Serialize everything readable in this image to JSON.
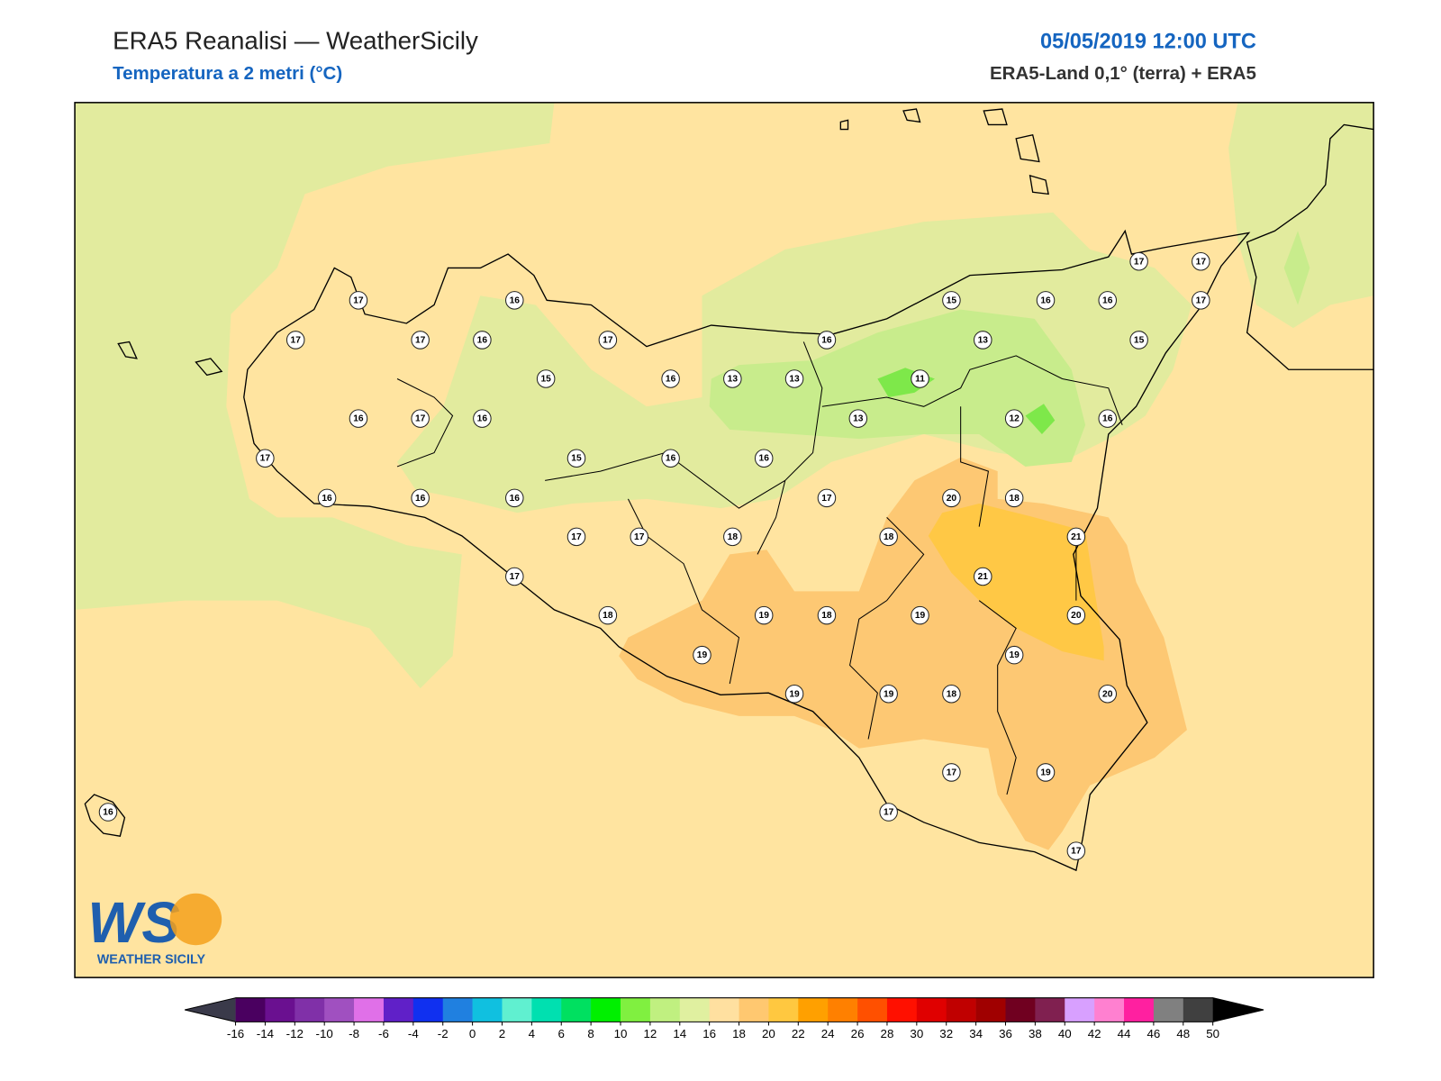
{
  "header": {
    "title": "ERA5 Reanalisi — WeatherSicily",
    "subtitle": "Temperatura a 2 metri (°C)",
    "datetime": "05/05/2019 12:00 UTC",
    "source": "ERA5-Land 0,1° (terra) + ERA5"
  },
  "stations": [
    17,
    16,
    17,
    17,
    16,
    17,
    15,
    16,
    13,
    13,
    16,
    17,
    16,
    17,
    15,
    16,
    16,
    16,
    16,
    16,
    17,
    17,
    18,
    17,
    18,
    19,
    19,
    18,
    19,
    16,
    17,
    13,
    11,
    18,
    19,
    19,
    20,
    18,
    15,
    13,
    21,
    12,
    18,
    19,
    16,
    19,
    17,
    17,
    21,
    20,
    20,
    17,
    16,
    15,
    16,
    17,
    17,
    17,
    16
  ],
  "colorbar": {
    "ticks": [
      -16,
      -14,
      -12,
      -10,
      -8,
      -6,
      -4,
      -2,
      0,
      2,
      4,
      6,
      8,
      10,
      12,
      14,
      16,
      18,
      20,
      22,
      24,
      26,
      28,
      30,
      32,
      34,
      36,
      38,
      40,
      42,
      44,
      46,
      48,
      50
    ],
    "colors": [
      "#4a0060",
      "#6a1090",
      "#8030a8",
      "#a050c0",
      "#e070e8",
      "#6020c8",
      "#1030f0",
      "#2080e0",
      "#10c0e0",
      "#60f0d0",
      "#00e0b0",
      "#00e060",
      "#00f000",
      "#80f040",
      "#c0f080",
      "#e0f0a0",
      "#ffe0a0",
      "#ffc870",
      "#ffc840",
      "#ffa000",
      "#ff8000",
      "#ff5000",
      "#ff1000",
      "#e00000",
      "#c00000",
      "#a00000",
      "#700020",
      "#802050",
      "#d8a0ff",
      "#ff80d0",
      "#ff20a0",
      "#808080",
      "#404040"
    ],
    "extend_colors": [
      "#3a3a4a",
      "#000000"
    ]
  },
  "logo": {
    "mark": "WS",
    "text": "WEATHER SICILY"
  }
}
